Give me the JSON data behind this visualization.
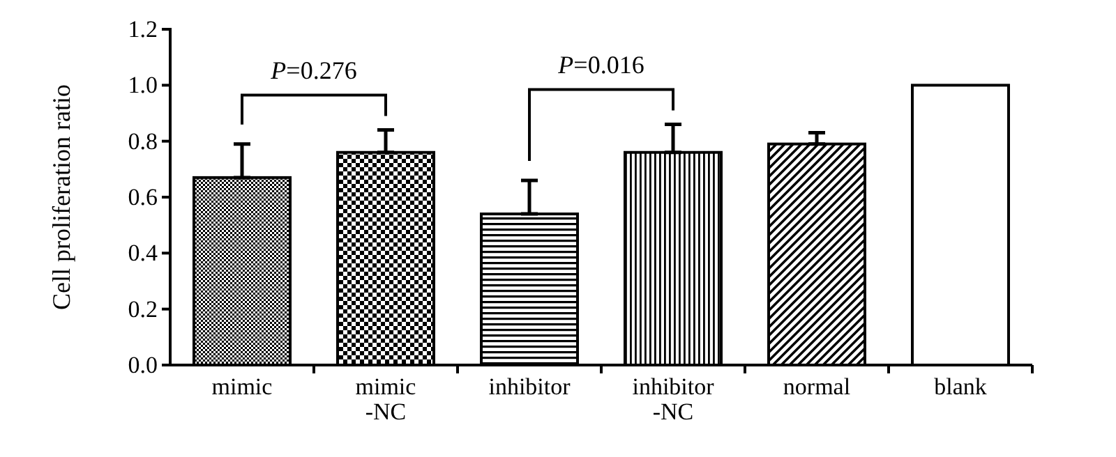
{
  "chart_data": {
    "type": "bar",
    "ylabel": "Cell proliferation ratio",
    "categories": [
      "mimic",
      "mimic -NC",
      "inhibitor",
      "inhibitor -NC",
      "normal",
      "blank"
    ],
    "values": [
      0.67,
      0.76,
      0.54,
      0.76,
      0.79,
      1.0
    ],
    "errors": [
      [
        0.67,
        0.79
      ],
      [
        0.76,
        0.84
      ],
      [
        0.54,
        0.66
      ],
      [
        0.76,
        0.86
      ],
      [
        0.79,
        0.83
      ],
      null
    ],
    "colors": [
      "#000000",
      "#000000",
      "#000000",
      "#000000",
      "#000000",
      "#ffffff"
    ],
    "ylim": [
      0,
      1.2
    ],
    "yticks": [
      {
        "value": 0,
        "label": "0.0"
      },
      0.2,
      0.4,
      0.6,
      0.8,
      {
        "value": 1,
        "label": "1.0"
      },
      1.2
    ],
    "annotations": [
      "P=0.276",
      "P=0.016"
    ],
    "grid": false
  }
}
